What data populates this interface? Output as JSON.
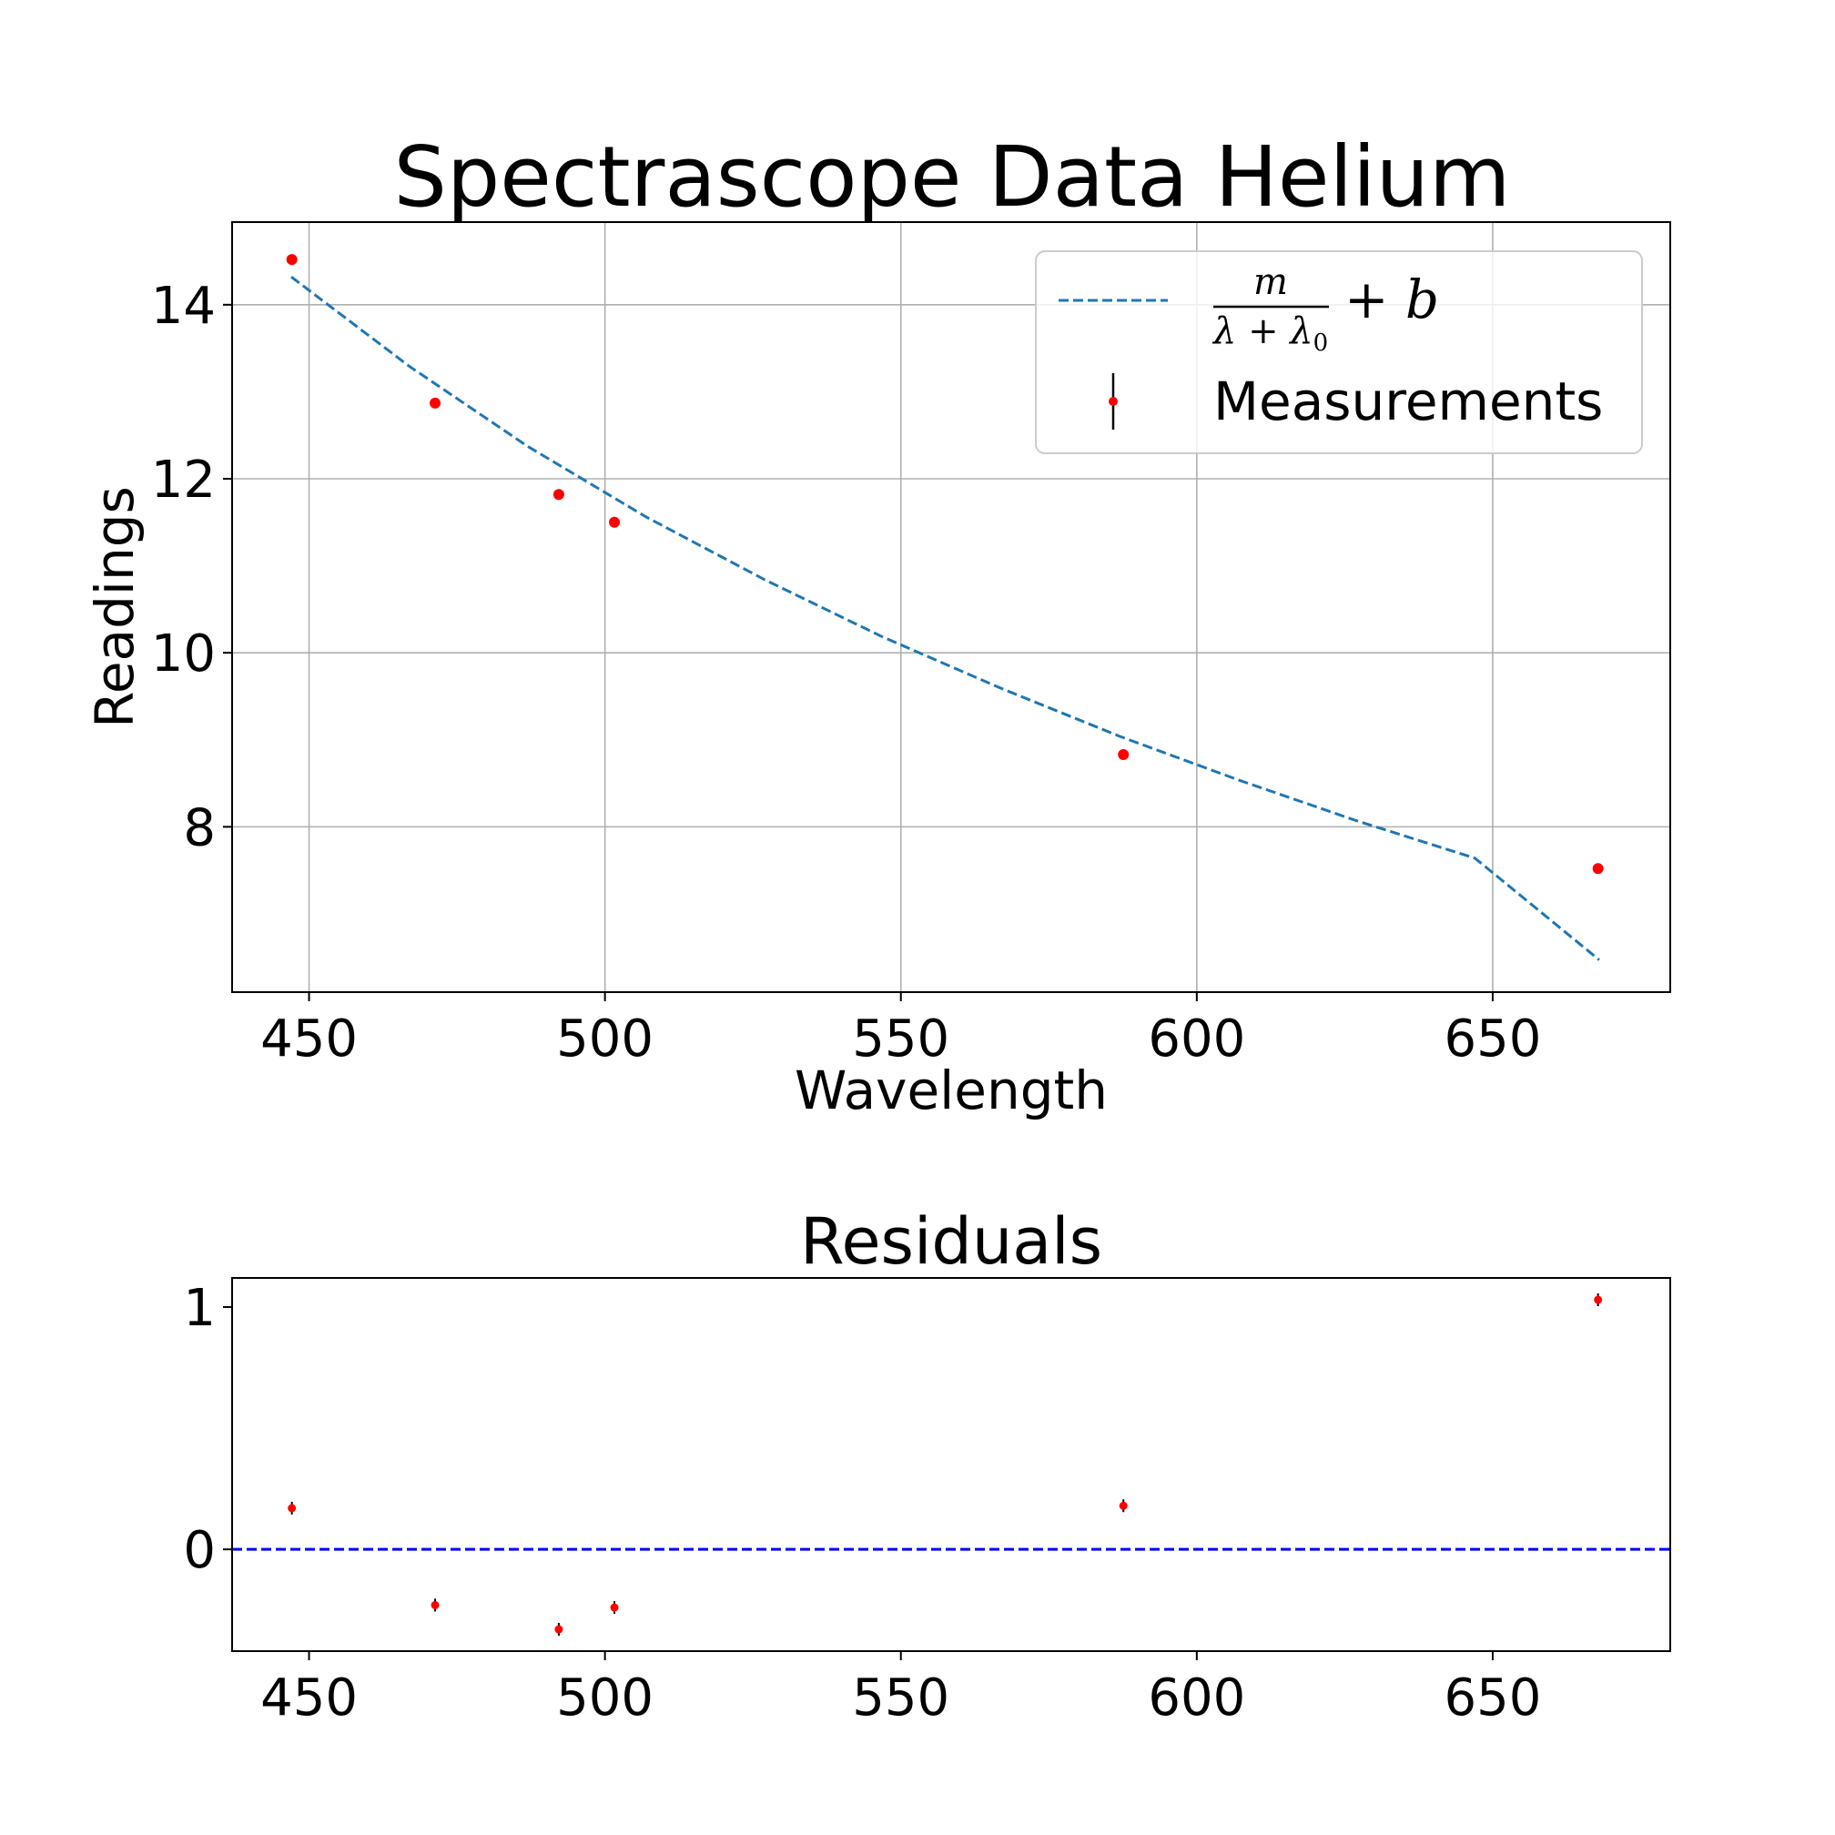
{
  "chart_data": [
    {
      "type": "scatter",
      "title": "Spectrascope Data Helium",
      "xlabel": "Wavelength",
      "ylabel": "Readings",
      "xlim": [
        437,
        680
      ],
      "ylim": [
        6.1,
        14.95
      ],
      "x_ticks": [
        450,
        500,
        550,
        600,
        650
      ],
      "y_ticks": [
        8,
        10,
        12,
        14
      ],
      "grid": true,
      "legend_position": "top-right",
      "series": [
        {
          "name": "Measurements",
          "kind": "errorbar-points",
          "color": "#ff0000",
          "x": [
            447.1,
            471.3,
            492.2,
            501.6,
            587.6,
            667.8
          ],
          "y": [
            14.52,
            12.87,
            11.82,
            11.5,
            8.83,
            7.52
          ]
        },
        {
          "name": "\\frac{m}{\\lambda+\\lambda_0}+b",
          "kind": "fit-line",
          "color": "#1f77b4",
          "x": [
            447,
            467,
            487,
            507,
            527,
            547,
            567,
            587,
            607,
            627,
            647,
            668
          ],
          "y": [
            14.32,
            13.29,
            12.37,
            11.56,
            10.84,
            10.18,
            9.59,
            9.04,
            8.54,
            8.07,
            7.64,
            6.47
          ]
        }
      ],
      "legend": {
        "fit_numerator": "m",
        "fit_denominator": "λ + λ",
        "fit_subscript": "0",
        "fit_suffix": "+ b",
        "points_label": "Measurements"
      }
    },
    {
      "type": "scatter",
      "title": "Residuals",
      "xlim": [
        437,
        680
      ],
      "ylim": [
        -0.42,
        1.12
      ],
      "x_ticks": [
        450,
        500,
        550,
        600,
        650
      ],
      "y_ticks": [
        0,
        1
      ],
      "grid": false,
      "zero_line_color": "#0000ff",
      "series": [
        {
          "name": "Residuals",
          "kind": "errorbar-points",
          "color": "#ff0000",
          "x": [
            447.1,
            471.3,
            492.2,
            501.6,
            587.6,
            667.8
          ],
          "y": [
            0.17,
            -0.23,
            -0.33,
            -0.24,
            0.18,
            1.03
          ]
        }
      ]
    }
  ]
}
